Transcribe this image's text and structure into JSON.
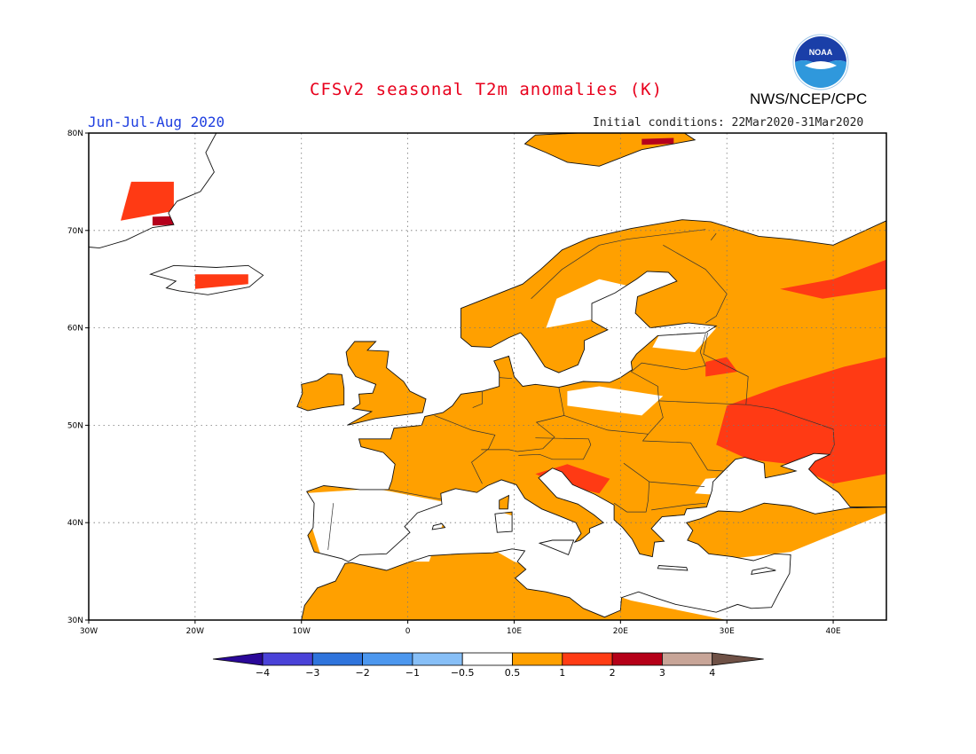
{
  "title": "CFSv2 seasonal T2m anomalies (K)",
  "season": "Jun-Jul-Aug 2020",
  "initial_conditions": "Initial conditions: 22Mar2020-31Mar2020",
  "agency": "NWS/NCEP/CPC",
  "logo_text": "NOAA",
  "map": {
    "lon_range": [
      -30,
      45
    ],
    "lat_range": [
      30,
      80
    ],
    "lon_ticks": [
      {
        "value": -30,
        "label": "30W"
      },
      {
        "value": -20,
        "label": "20W"
      },
      {
        "value": -10,
        "label": "10W"
      },
      {
        "value": 0,
        "label": "0"
      },
      {
        "value": 10,
        "label": "10E"
      },
      {
        "value": 20,
        "label": "20E"
      },
      {
        "value": 30,
        "label": "30E"
      },
      {
        "value": 40,
        "label": "40E"
      }
    ],
    "lat_ticks": [
      {
        "value": 80,
        "label": "80N"
      },
      {
        "value": 70,
        "label": "70N"
      },
      {
        "value": 60,
        "label": "60N"
      },
      {
        "value": 50,
        "label": "50N"
      },
      {
        "value": 40,
        "label": "40N"
      },
      {
        "value": 30,
        "label": "30N"
      }
    ],
    "colors": {
      "c1": "#ffa000",
      "c2": "#ff3a14",
      "c3": "#b5001c",
      "neg": "#7db6f5"
    }
  },
  "legend": {
    "colors": [
      "#2a0898",
      "#4a42d8",
      "#2f74dc",
      "#4c97ee",
      "#87bff7",
      "#ffffff",
      "#ffa000",
      "#ff3c14",
      "#b50018",
      "#c8a598",
      "#6f5146"
    ],
    "labels": [
      "-4",
      "-3",
      "-2",
      "-1",
      "-0.5",
      "0.5",
      "1",
      "2",
      "3",
      "4"
    ]
  }
}
